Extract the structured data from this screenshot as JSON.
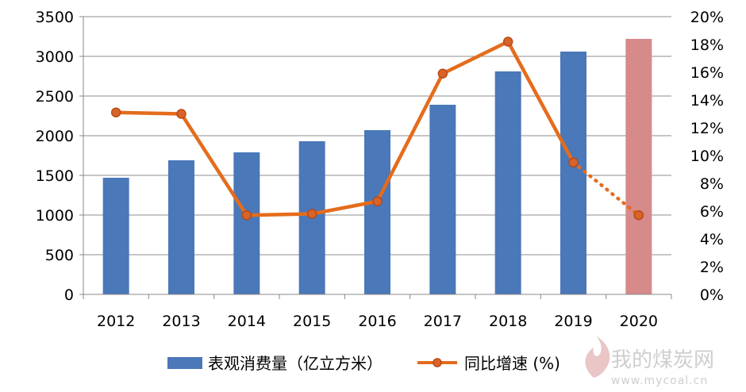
{
  "chart_data": {
    "type": "bar",
    "categories": [
      "2012",
      "2013",
      "2014",
      "2015",
      "2016",
      "2017",
      "2018",
      "2019",
      "2020"
    ],
    "series": [
      {
        "name": "表观消费量（亿立方米）",
        "type": "bar",
        "axis": "left",
        "color": "#4a78b9",
        "highlight_color": "#d68a8a",
        "highlight_index": 8,
        "values": [
          1470,
          1690,
          1790,
          1930,
          2070,
          2390,
          2810,
          3060,
          3220
        ]
      },
      {
        "name": "同比增速 (%)",
        "type": "line",
        "axis": "right",
        "color": "#e46c1c",
        "dotted_from_index": 7,
        "values": [
          13.1,
          13.0,
          5.7,
          5.8,
          6.7,
          15.9,
          18.2,
          9.5,
          5.7
        ]
      }
    ],
    "y_left": {
      "lim": [
        0,
        3500
      ],
      "ticks": [
        "0",
        "500",
        "1000",
        "1500",
        "2000",
        "2500",
        "3000",
        "3500"
      ]
    },
    "y_right": {
      "lim": [
        0,
        20
      ],
      "ticks": [
        "0%",
        "2%",
        "4%",
        "6%",
        "8%",
        "10%",
        "12%",
        "14%",
        "16%",
        "18%",
        "20%"
      ]
    },
    "grid": true,
    "legend": "bottom",
    "title": "",
    "xlabel": "",
    "ylabel": ""
  },
  "watermark": {
    "text": "我的煤炭网",
    "url": "www.mycoal.cn",
    "icon": "flame-logo-icon"
  }
}
